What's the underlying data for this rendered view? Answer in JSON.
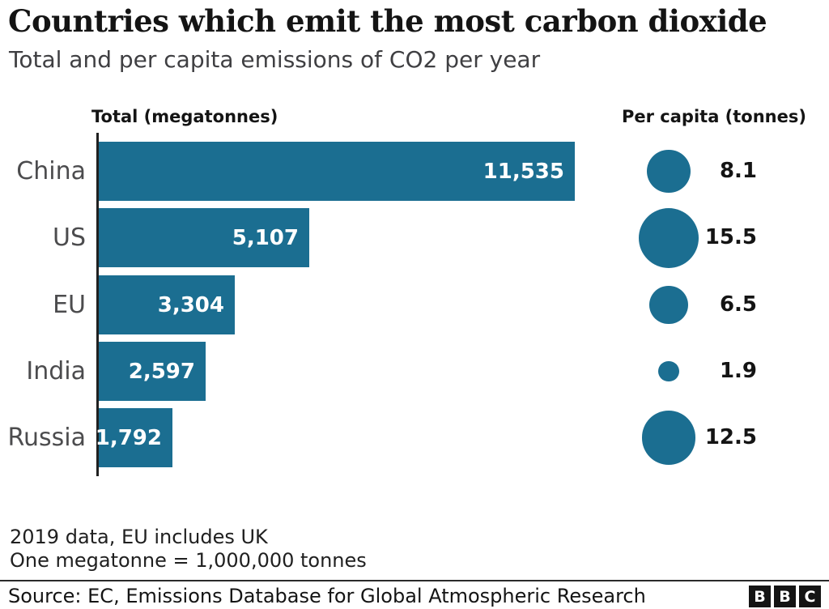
{
  "header": {
    "title": "Countries which emit the most carbon dioxide",
    "subtitle": "Total and per capita emissions of CO2 per year"
  },
  "columns": {
    "total_header": "Total (megatonnes)",
    "percapita_header": "Per capita (tonnes)"
  },
  "chart_data": {
    "type": "bar",
    "categories": [
      "China",
      "US",
      "EU",
      "India",
      "Russia"
    ],
    "series": [
      {
        "name": "Total (megatonnes)",
        "type": "bar",
        "values": [
          11535,
          5107,
          3304,
          2597,
          1792
        ],
        "labels": [
          "11,535",
          "5,107",
          "3,304",
          "2,597",
          "1,792"
        ]
      },
      {
        "name": "Per capita (tonnes)",
        "type": "bubble",
        "values": [
          8.1,
          15.5,
          6.5,
          1.9,
          12.5
        ],
        "labels": [
          "8.1",
          "15.5",
          "6.5",
          "1.9",
          "12.5"
        ]
      }
    ],
    "title": "Countries which emit the most carbon dioxide",
    "subtitle": "Total and per capita emissions of CO2 per year",
    "xlabel": "",
    "ylabel": "",
    "xlim": [
      0,
      11535
    ],
    "grid": false,
    "legend_position": "none",
    "orientation": "horizontal"
  },
  "colors": {
    "accent_teal": "#1B6E91",
    "axis": "#202020",
    "category_label": "#4C4C4E",
    "bar_value_text": "#FFFFFF",
    "text_dark": "#141414",
    "subtitle_gray": "#3F3F42"
  },
  "footnotes": {
    "line1": "2019 data, EU includes UK",
    "line2": "One megatonne = 1,000,000 tonnes"
  },
  "source": "Source: EC, Emissions Database for Global Atmospheric Research",
  "logo": {
    "letters": [
      "B",
      "B",
      "C"
    ]
  }
}
